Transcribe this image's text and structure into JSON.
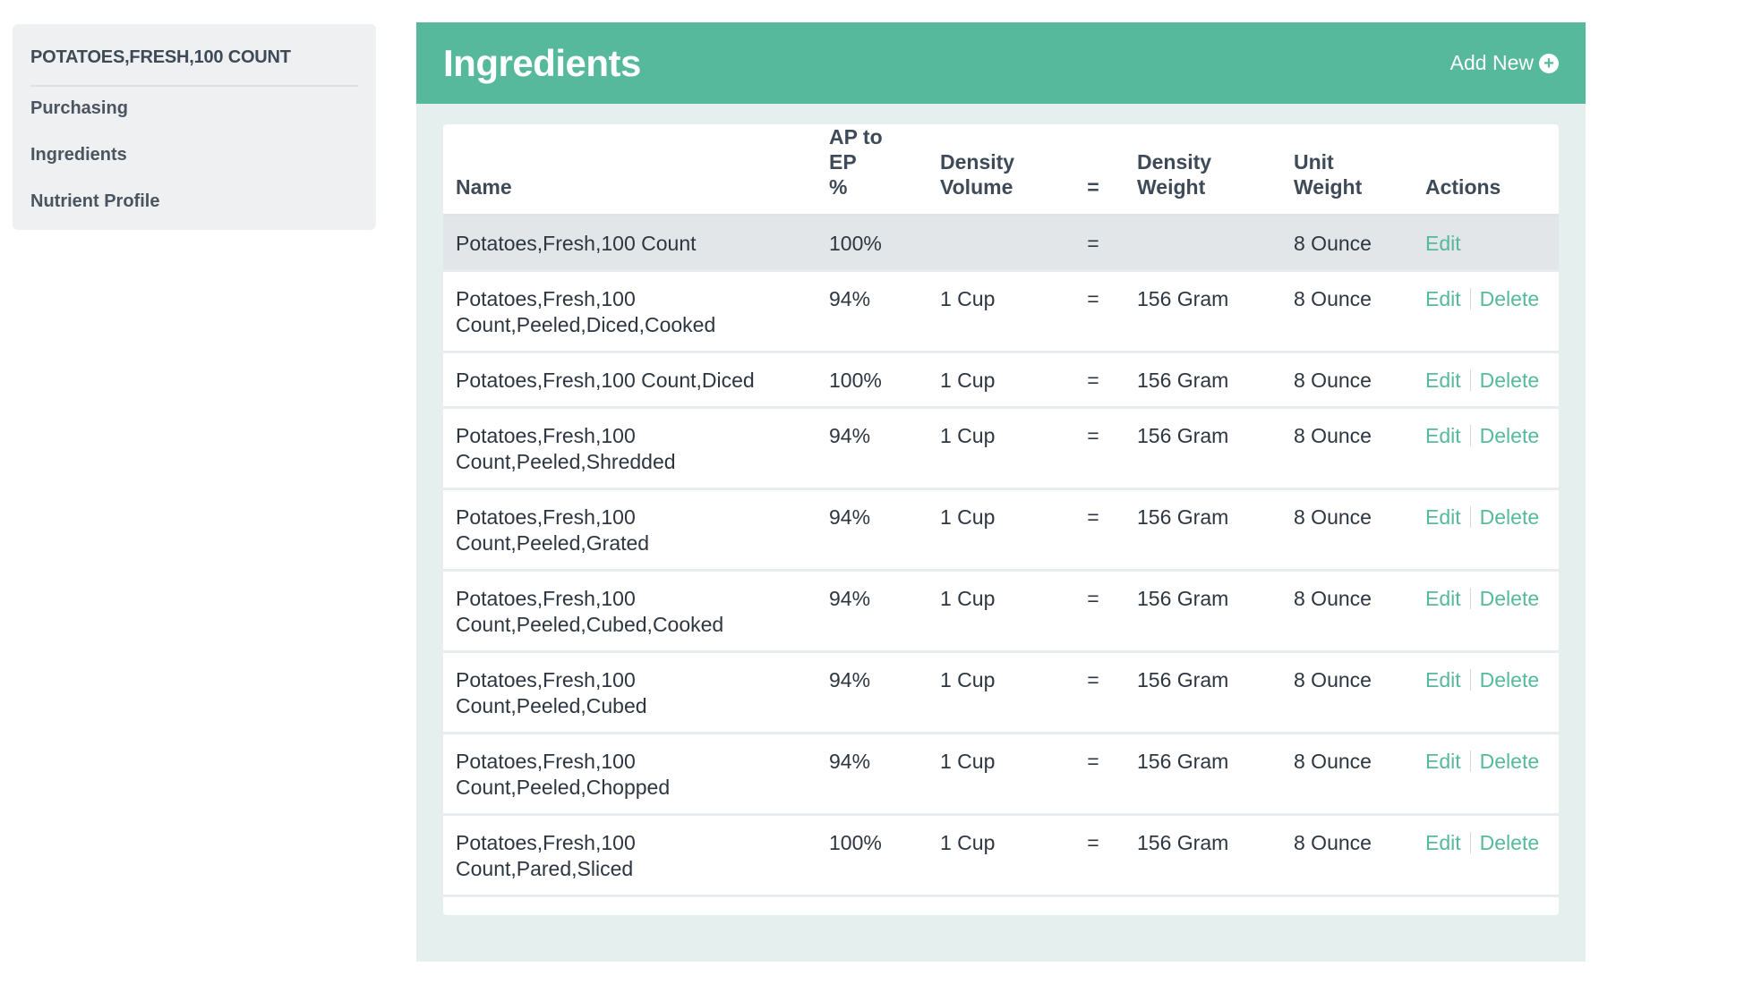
{
  "sidebar": {
    "title": "POTATOES,FRESH,100 COUNT",
    "items": [
      {
        "label": "Purchasing"
      },
      {
        "label": "Ingredients"
      },
      {
        "label": "Nutrient Profile"
      }
    ]
  },
  "panel": {
    "title": "Ingredients",
    "add_new_label": "Add New",
    "add_new_icon": "plus-circle-icon",
    "accent_color": "#56b99b"
  },
  "table": {
    "headers": {
      "name": "Name",
      "ap_ep_line1": "AP to EP",
      "ap_ep_line2": "%",
      "density_volume_line1": "Density",
      "density_volume_line2": "Volume",
      "equals": "=",
      "density_weight_line1": "Density",
      "density_weight_line2": "Weight",
      "unit_weight_line1": "Unit",
      "unit_weight_line2": "Weight",
      "actions": "Actions"
    },
    "edit_label": "Edit",
    "delete_label": "Delete",
    "rows": [
      {
        "name": "Potatoes,Fresh,100 Count",
        "ap_ep": "100%",
        "density_volume": "",
        "eq": "=",
        "density_weight": "",
        "unit_weight": "8 Ounce"
      },
      {
        "name": "Potatoes,Fresh,100 Count,Peeled,Diced,Cooked",
        "ap_ep": "94%",
        "density_volume": "1 Cup",
        "eq": "=",
        "density_weight": "156 Gram",
        "unit_weight": "8 Ounce"
      },
      {
        "name": "Potatoes,Fresh,100 Count,Diced",
        "ap_ep": "100%",
        "density_volume": "1 Cup",
        "eq": "=",
        "density_weight": "156 Gram",
        "unit_weight": "8 Ounce"
      },
      {
        "name": "Potatoes,Fresh,100 Count,Peeled,Shredded",
        "ap_ep": "94%",
        "density_volume": "1 Cup",
        "eq": "=",
        "density_weight": "156 Gram",
        "unit_weight": "8 Ounce"
      },
      {
        "name": "Potatoes,Fresh,100 Count,Peeled,Grated",
        "ap_ep": "94%",
        "density_volume": "1 Cup",
        "eq": "=",
        "density_weight": "156 Gram",
        "unit_weight": "8 Ounce"
      },
      {
        "name": "Potatoes,Fresh,100 Count,Peeled,Cubed,Cooked",
        "ap_ep": "94%",
        "density_volume": "1 Cup",
        "eq": "=",
        "density_weight": "156 Gram",
        "unit_weight": "8 Ounce"
      },
      {
        "name": "Potatoes,Fresh,100 Count,Peeled,Cubed",
        "ap_ep": "94%",
        "density_volume": "1 Cup",
        "eq": "=",
        "density_weight": "156 Gram",
        "unit_weight": "8 Ounce"
      },
      {
        "name": "Potatoes,Fresh,100 Count,Peeled,Chopped",
        "ap_ep": "94%",
        "density_volume": "1 Cup",
        "eq": "=",
        "density_weight": "156 Gram",
        "unit_weight": "8 Ounce"
      },
      {
        "name": "Potatoes,Fresh,100 Count,Pared,Sliced",
        "ap_ep": "100%",
        "density_volume": "1 Cup",
        "eq": "=",
        "density_weight": "156 Gram",
        "unit_weight": "8 Ounce"
      }
    ]
  }
}
